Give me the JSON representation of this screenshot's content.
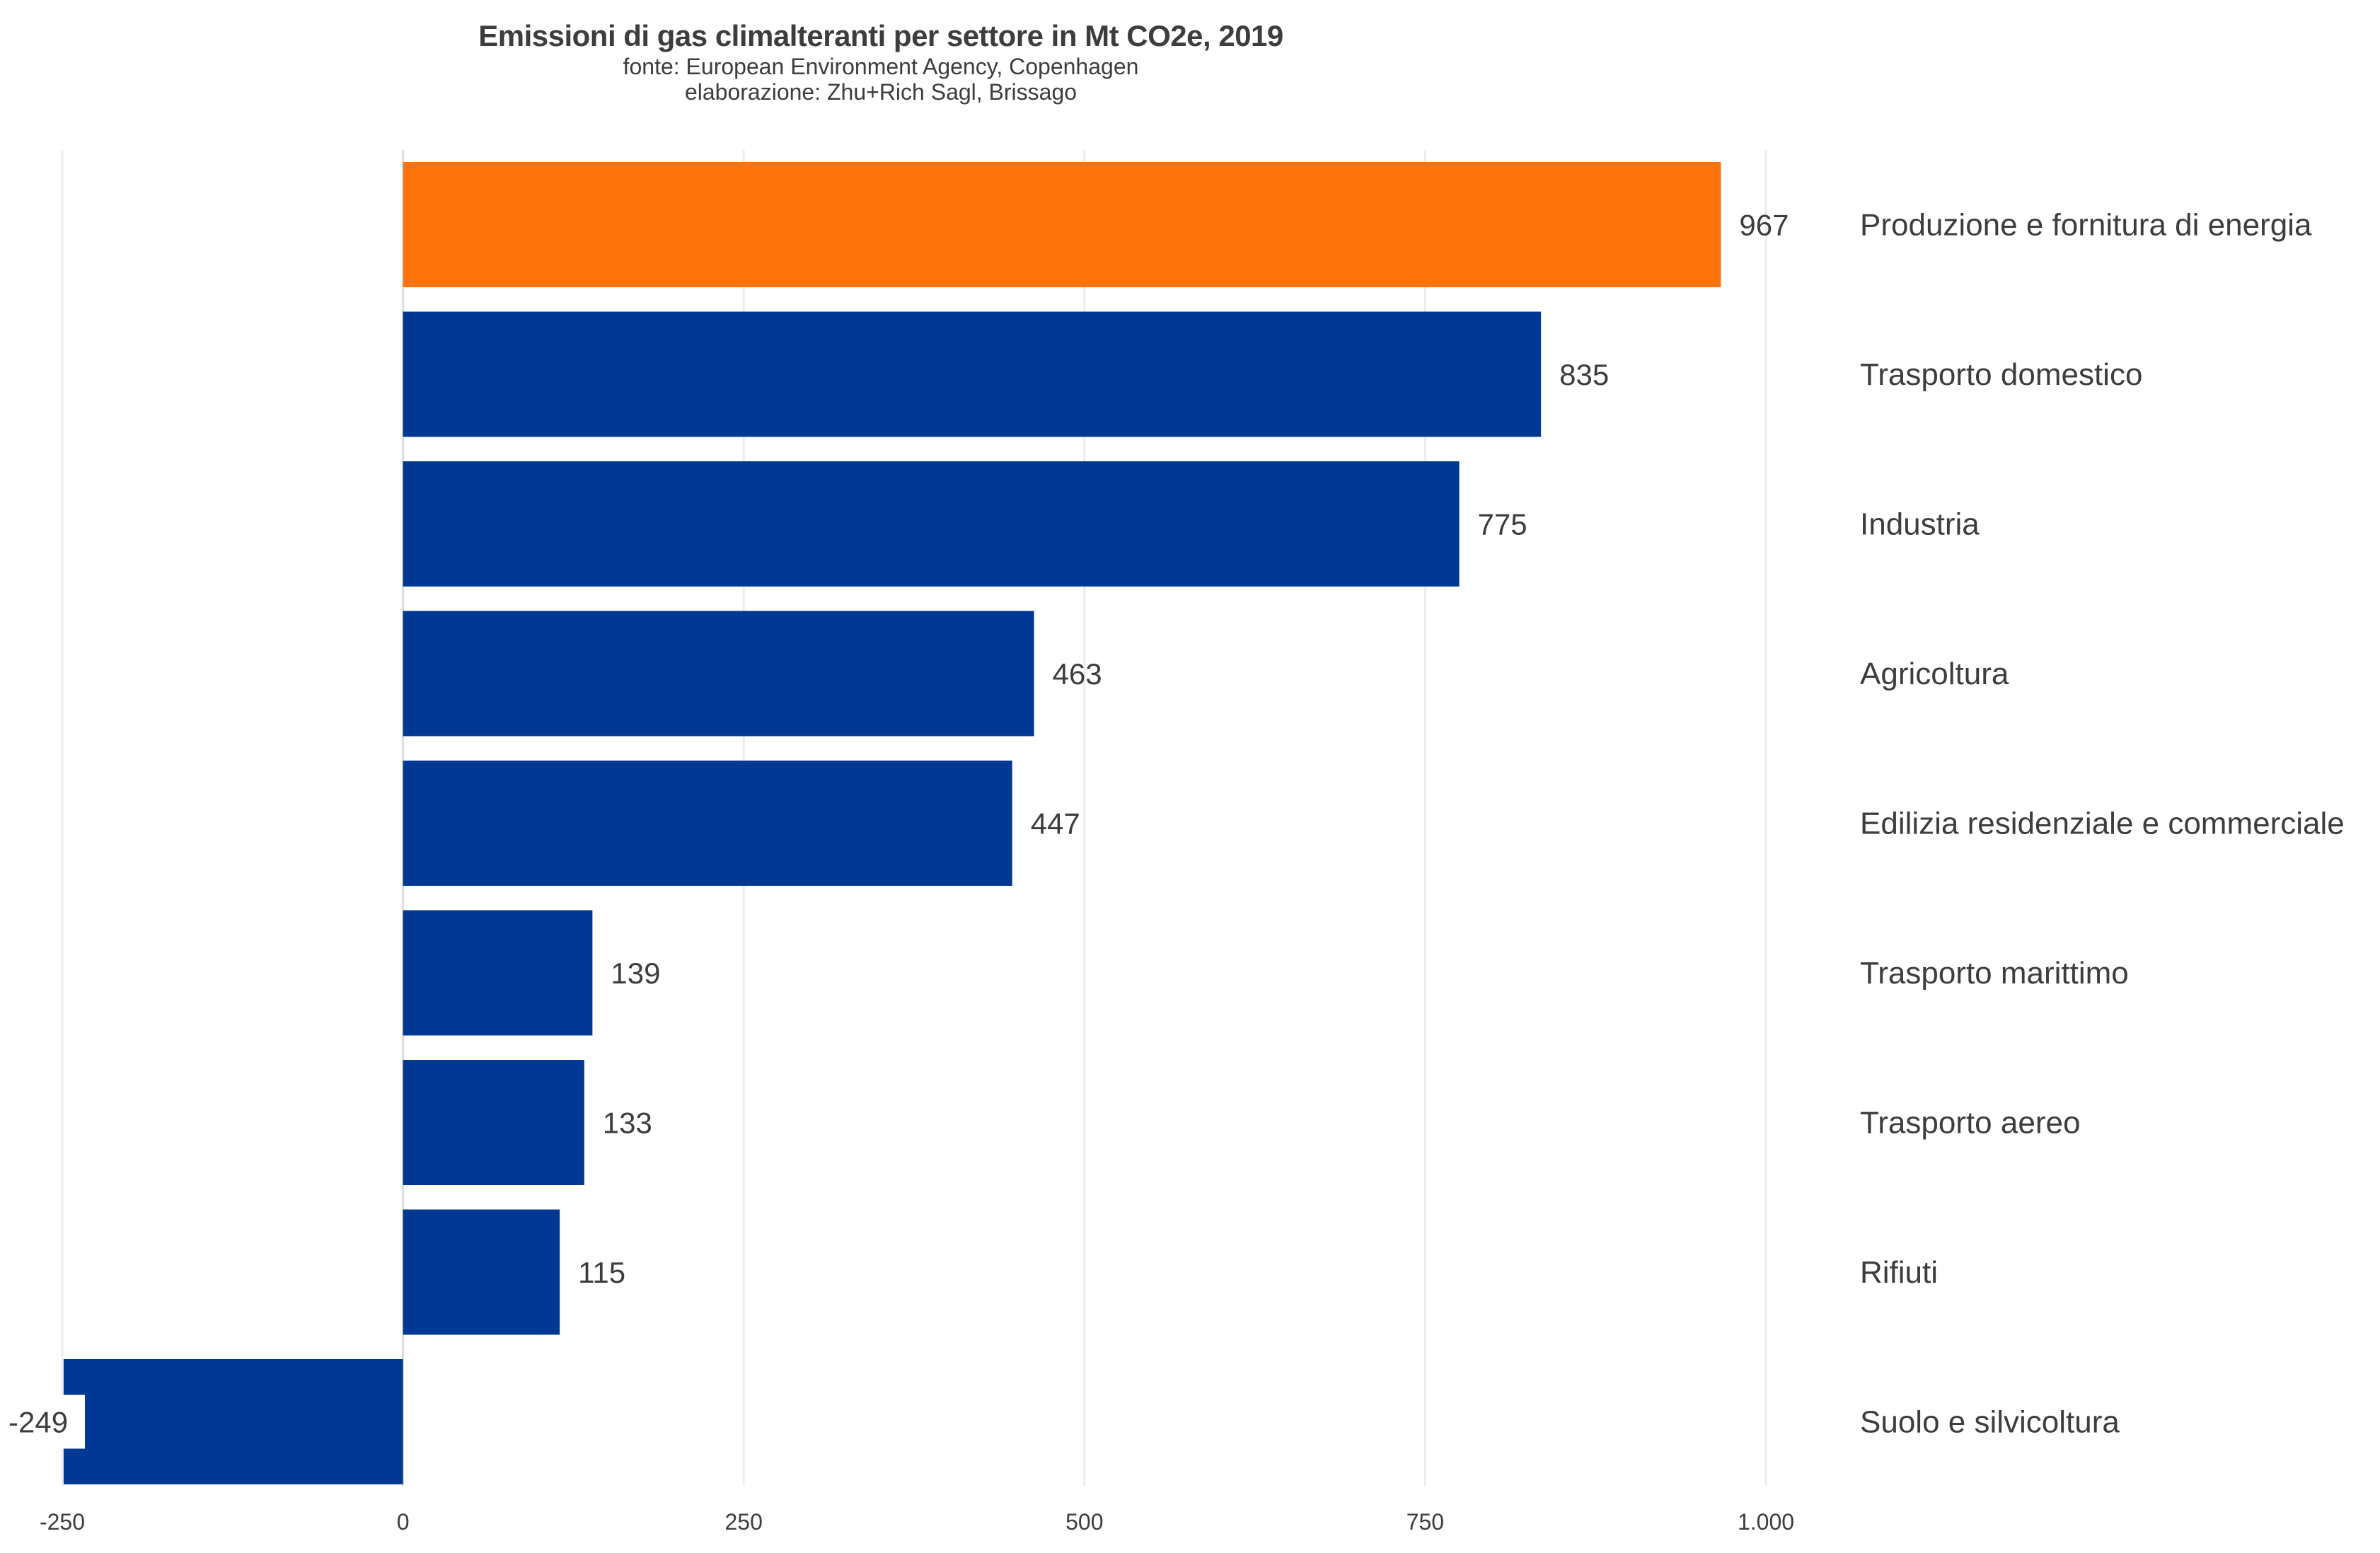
{
  "chart_data": {
    "type": "bar",
    "orientation": "horizontal",
    "title": "Emissioni di gas climalteranti per settore in Mt CO2e, 2019",
    "subtitle": [
      "fonte: European Environment Agency, Copenhagen",
      "elaborazione: Zhu+Rich Sagl, Brissago"
    ],
    "xlabel": "",
    "ylabel": "",
    "categories": [
      "Produzione e fornitura di energia",
      "Trasporto domestico",
      "Industria",
      "Agricoltura",
      "Edilizia residenziale e commerciale",
      "Trasporto marittimo",
      "Trasporto aereo",
      "Rifiuti",
      "Suolo e silvicoltura"
    ],
    "values": [
      967,
      835,
      775,
      463,
      447,
      139,
      133,
      115,
      -249
    ],
    "value_labels": [
      "967",
      "835",
      "775",
      "463",
      "447",
      "139",
      "133",
      "115",
      "-249"
    ],
    "highlight_index": 0,
    "xlim": [
      -250,
      1000
    ],
    "x_ticks": [
      -250,
      0,
      250,
      500,
      750,
      1000
    ],
    "x_tick_labels": [
      "-250",
      "0",
      "250",
      "500",
      "750",
      "1.000"
    ],
    "grid": "vertical major gridlines",
    "legend": "none",
    "colors": {
      "highlight": "#FF730B",
      "bar": "#003893",
      "text": "#3d3d3d",
      "grid": "#ececec"
    }
  }
}
